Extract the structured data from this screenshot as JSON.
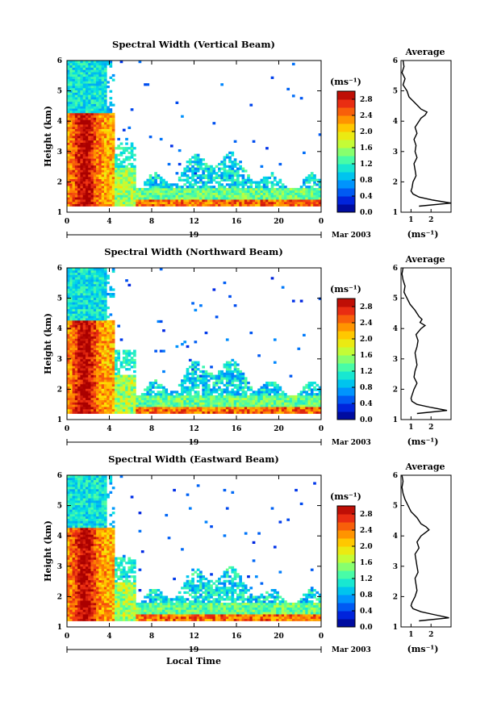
{
  "chart_data": [
    {
      "type": "heatmap",
      "title": "Spectral Width (Vertical Beam)",
      "ylabel": "Height (km)",
      "ylim": [
        1,
        6
      ],
      "yticks": [
        "1",
        "2",
        "3",
        "4",
        "5",
        "6"
      ],
      "xlim": [
        0,
        24
      ],
      "xticks": [
        "0",
        "4",
        "8",
        "12",
        "16",
        "20",
        "0"
      ],
      "date_label": "19",
      "month_label": "Mar 2003",
      "colorbar": {
        "unit": "(ms⁻¹)",
        "ticks": [
          "2.8",
          "2.4",
          "2.0",
          "1.6",
          "1.2",
          "0.8",
          "0.4",
          "0.0"
        ],
        "range": [
          0.0,
          3.0
        ]
      },
      "profile": {
        "title": "Average",
        "xlabel": "(ms⁻¹)",
        "xticks": [
          "1",
          "2"
        ],
        "xlim": [
          0.5,
          3.0
        ],
        "height": [
          1.2,
          1.3,
          1.4,
          1.5,
          1.6,
          1.7,
          1.8,
          2.0,
          2.2,
          2.4,
          2.6,
          2.8,
          3.0,
          3.2,
          3.4,
          3.6,
          3.8,
          4.0,
          4.1,
          4.2,
          4.3,
          4.4,
          4.6,
          4.8,
          5.0,
          5.2,
          5.4,
          5.6,
          5.8,
          6.0
        ],
        "width": [
          1.4,
          3.0,
          2.1,
          1.4,
          1.1,
          1.0,
          1.05,
          1.1,
          1.25,
          1.2,
          1.15,
          1.3,
          1.2,
          1.25,
          1.15,
          1.3,
          1.2,
          1.4,
          1.5,
          1.7,
          1.8,
          1.5,
          1.2,
          0.9,
          0.8,
          0.6,
          0.7,
          0.55,
          0.65,
          0.6
        ]
      }
    },
    {
      "type": "heatmap",
      "title": "Spectral Width (Northward Beam)",
      "ylabel": "Height (km)",
      "ylim": [
        1,
        6
      ],
      "yticks": [
        "1",
        "2",
        "3",
        "4",
        "5",
        "6"
      ],
      "xlim": [
        0,
        24
      ],
      "xticks": [
        "0",
        "4",
        "8",
        "12",
        "16",
        "20",
        "0"
      ],
      "date_label": "19",
      "month_label": "Mar 2003",
      "colorbar": {
        "unit": "(ms⁻¹)",
        "ticks": [
          "2.8",
          "2.4",
          "2.0",
          "1.6",
          "1.2",
          "0.8",
          "0.4",
          "0.0"
        ],
        "range": [
          0.0,
          3.0
        ]
      },
      "profile": {
        "title": "Average",
        "xlabel": "(ms⁻¹)",
        "xticks": [
          "1",
          "2"
        ],
        "xlim": [
          0.5,
          3.0
        ],
        "height": [
          1.2,
          1.3,
          1.4,
          1.5,
          1.6,
          1.7,
          1.8,
          2.0,
          2.2,
          2.4,
          2.6,
          2.8,
          3.0,
          3.2,
          3.4,
          3.6,
          3.8,
          4.0,
          4.1,
          4.2,
          4.3,
          4.4,
          4.6,
          4.8,
          5.0,
          5.2,
          5.4,
          5.6,
          5.8,
          6.0
        ],
        "width": [
          1.3,
          2.8,
          2.0,
          1.3,
          1.05,
          1.0,
          1.05,
          1.15,
          1.3,
          1.15,
          1.2,
          1.3,
          1.25,
          1.2,
          1.3,
          1.35,
          1.25,
          1.5,
          1.7,
          1.45,
          1.55,
          1.4,
          1.2,
          0.95,
          0.8,
          0.65,
          0.7,
          0.6,
          0.55,
          0.6
        ]
      }
    },
    {
      "type": "heatmap",
      "title": "Spectral Width (Eastward Beam)",
      "ylabel": "Height (km)",
      "xlabel": "Local Time",
      "ylim": [
        1,
        6
      ],
      "yticks": [
        "1",
        "2",
        "3",
        "4",
        "5",
        "6"
      ],
      "xlim": [
        0,
        24
      ],
      "xticks": [
        "0",
        "4",
        "8",
        "12",
        "16",
        "20",
        "0"
      ],
      "date_label": "19",
      "month_label": "Mar 2003",
      "colorbar": {
        "unit": "(ms⁻¹)",
        "ticks": [
          "2.8",
          "2.4",
          "2.0",
          "1.6",
          "1.2",
          "0.8",
          "0.4",
          "0.0"
        ],
        "range": [
          0.0,
          3.0
        ]
      },
      "profile": {
        "title": "Average",
        "xlabel": "(ms⁻¹)",
        "xticks": [
          "1",
          "2"
        ],
        "xlim": [
          0.5,
          3.0
        ],
        "height": [
          1.2,
          1.3,
          1.4,
          1.5,
          1.6,
          1.7,
          1.8,
          2.0,
          2.2,
          2.4,
          2.6,
          2.8,
          3.0,
          3.2,
          3.4,
          3.6,
          3.8,
          4.0,
          4.1,
          4.2,
          4.3,
          4.4,
          4.6,
          4.8,
          5.0,
          5.2,
          5.4,
          5.6,
          5.8,
          6.0
        ],
        "width": [
          1.4,
          2.9,
          2.2,
          1.5,
          1.1,
          1.0,
          1.05,
          1.2,
          1.3,
          1.25,
          1.2,
          1.35,
          1.3,
          1.25,
          1.2,
          1.4,
          1.3,
          1.5,
          1.7,
          1.9,
          1.75,
          1.5,
          1.3,
          1.0,
          0.85,
          0.7,
          0.6,
          0.55,
          0.6,
          0.55
        ]
      }
    }
  ]
}
